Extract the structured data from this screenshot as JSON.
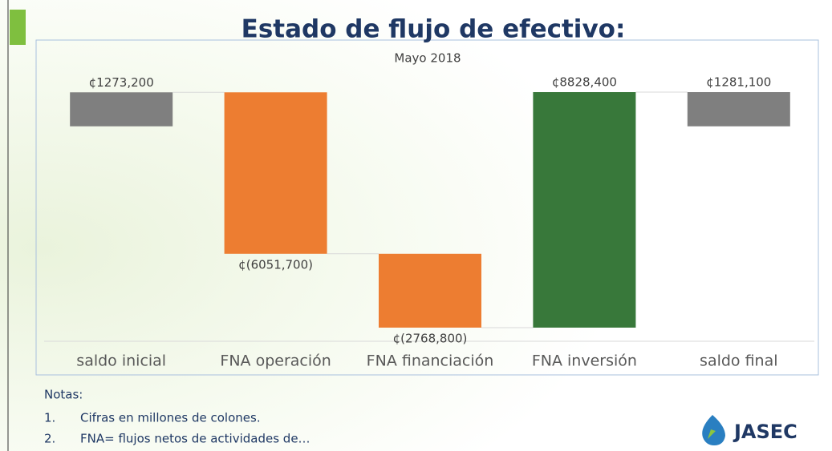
{
  "chart_data": {
    "type": "waterfall",
    "title": "Estado de flujo de efectivo:",
    "subtitle": "Mayo 2018",
    "categories": [
      "saldo inicial",
      "FNA operación",
      "FNA financiación",
      "FNA inversión",
      "saldo final"
    ],
    "values": [
      1273.2,
      -6051.7,
      -2768.8,
      8828.4,
      1281.1
    ],
    "value_labels": [
      "¢1273,200",
      "¢(6051,700)",
      "¢(2768,800)",
      "¢8828,400",
      "¢1281,100"
    ],
    "totals": [
      true,
      false,
      false,
      false,
      true
    ],
    "colors": [
      "#7f7f7f",
      "#ed7d31",
      "#ed7d31",
      "#38783a",
      "#7f7f7f"
    ]
  },
  "notes": {
    "heading": "Notas:",
    "items": [
      {
        "number": "1.",
        "text": "Cifras en millones de colones."
      },
      {
        "number": "2.",
        "text": "FNA= flujos netos de actividades de…"
      }
    ]
  },
  "logo": "JASEC"
}
